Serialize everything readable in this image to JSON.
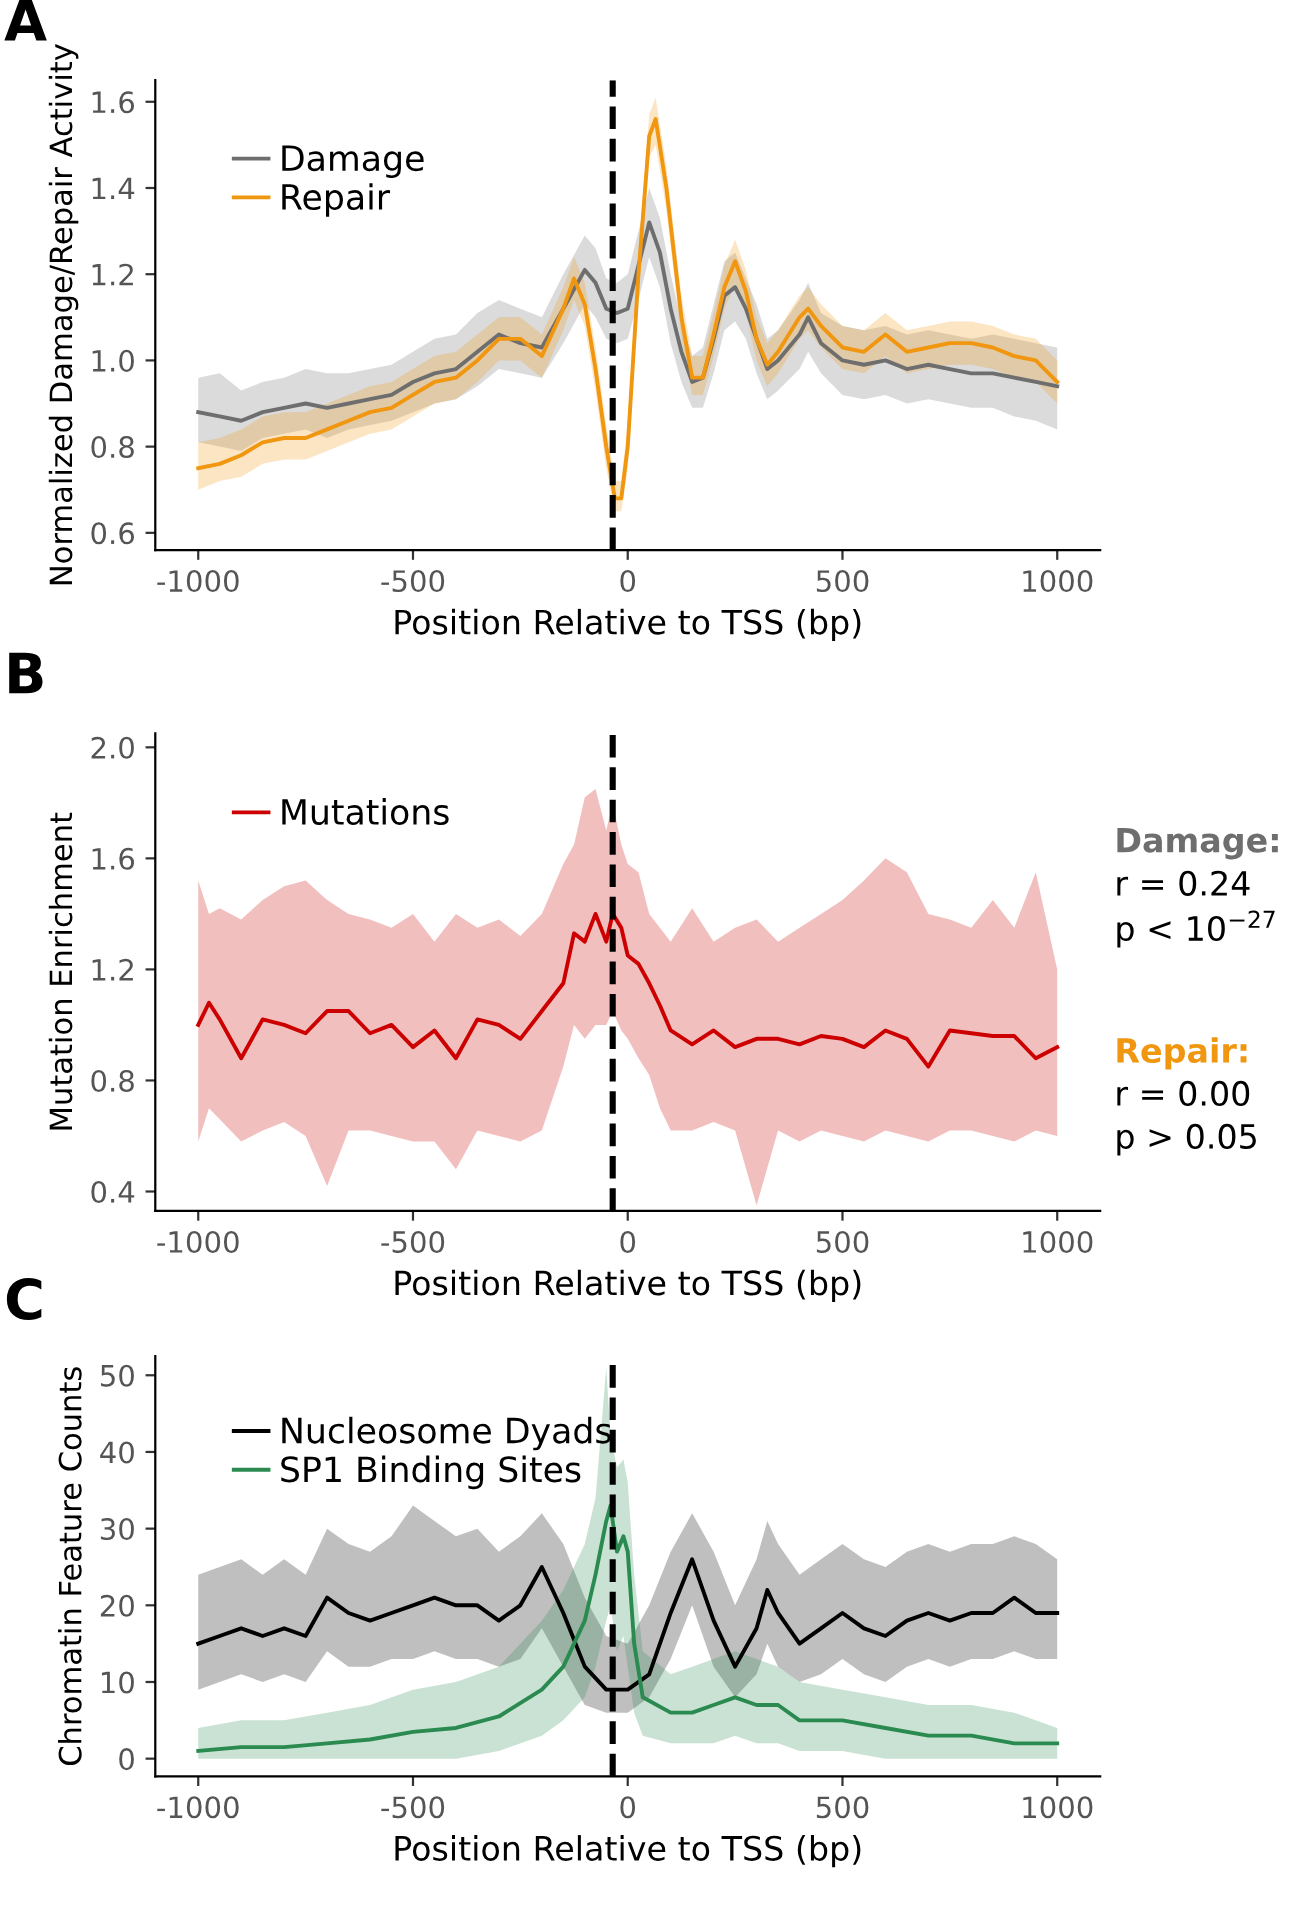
{
  "chart_data": [
    {
      "type": "line",
      "title": "A",
      "xlabel": "Position Relative to TSS (bp)",
      "ylabel": "Normalized Damage/Repair Activity",
      "xlim": [
        -1100,
        1100
      ],
      "xticks": [
        -1000,
        -500,
        0,
        500,
        1000
      ],
      "ylim": [
        0.56,
        1.65
      ],
      "yticks": [
        0.6,
        0.8,
        {
          "value": 1.0,
          "label": "1.0"
        },
        1.2,
        1.4,
        1.6
      ],
      "grid": false,
      "legend": "top left",
      "marker": "none",
      "line_style": "solid",
      "ref_lines": [
        {
          "axis": "x",
          "value": -35,
          "color": "#000000",
          "line_style": "dashed"
        }
      ],
      "series": [
        {
          "name": "Damage",
          "color": "#6e6e6e",
          "x": [
            -1000,
            -950,
            -900,
            -850,
            -800,
            -750,
            -700,
            -650,
            -600,
            -550,
            -500,
            -450,
            -400,
            -350,
            -300,
            -250,
            -200,
            -150,
            -100,
            -75,
            -50,
            -25,
            0,
            25,
            50,
            75,
            100,
            125,
            150,
            175,
            200,
            225,
            250,
            275,
            300,
            325,
            350,
            400,
            420,
            450,
            500,
            550,
            600,
            650,
            700,
            750,
            800,
            850,
            900,
            950,
            1000
          ],
          "values": [
            0.88,
            0.87,
            0.86,
            0.88,
            0.89,
            0.9,
            0.89,
            0.9,
            0.91,
            0.92,
            0.95,
            0.97,
            0.98,
            1.02,
            1.06,
            1.04,
            1.03,
            1.12,
            1.21,
            1.18,
            1.12,
            1.11,
            1.12,
            1.22,
            1.32,
            1.25,
            1.12,
            1.02,
            0.95,
            0.96,
            1.05,
            1.15,
            1.17,
            1.12,
            1.05,
            0.98,
            1.0,
            1.06,
            1.1,
            1.04,
            1.0,
            0.99,
            1.0,
            0.98,
            0.99,
            0.98,
            0.97,
            0.97,
            0.96,
            0.95,
            0.94
          ],
          "lower": [
            0.81,
            0.8,
            0.79,
            0.82,
            0.83,
            0.84,
            0.82,
            0.84,
            0.85,
            0.86,
            0.88,
            0.9,
            0.91,
            0.94,
            0.98,
            0.97,
            0.96,
            1.04,
            1.13,
            1.1,
            1.05,
            1.04,
            1.05,
            1.14,
            1.24,
            1.17,
            1.04,
            0.95,
            0.89,
            0.89,
            0.97,
            1.07,
            1.09,
            1.05,
            0.97,
            0.91,
            0.93,
            0.98,
            1.02,
            0.97,
            0.92,
            0.91,
            0.92,
            0.9,
            0.91,
            0.9,
            0.89,
            0.89,
            0.87,
            0.86,
            0.84
          ],
          "upper": [
            0.96,
            0.97,
            0.93,
            0.95,
            0.96,
            0.98,
            0.97,
            0.97,
            0.98,
            0.99,
            1.02,
            1.05,
            1.06,
            1.11,
            1.14,
            1.12,
            1.1,
            1.2,
            1.29,
            1.26,
            1.19,
            1.18,
            1.2,
            1.3,
            1.4,
            1.33,
            1.2,
            1.09,
            1.01,
            1.03,
            1.13,
            1.23,
            1.25,
            1.19,
            1.13,
            1.05,
            1.07,
            1.14,
            1.18,
            1.11,
            1.08,
            1.07,
            1.08,
            1.06,
            1.07,
            1.06,
            1.05,
            1.06,
            1.05,
            1.04,
            1.03
          ]
        },
        {
          "name": "Repair",
          "color": "#f0960f",
          "x": [
            -1000,
            -950,
            -900,
            -850,
            -800,
            -750,
            -700,
            -650,
            -600,
            -550,
            -500,
            -450,
            -400,
            -350,
            -300,
            -250,
            -200,
            -150,
            -125,
            -100,
            -75,
            -50,
            -30,
            -15,
            0,
            25,
            50,
            65,
            90,
            125,
            150,
            175,
            200,
            225,
            250,
            275,
            300,
            325,
            350,
            400,
            420,
            450,
            500,
            550,
            600,
            650,
            700,
            750,
            800,
            850,
            900,
            950,
            1000
          ],
          "values": [
            0.75,
            0.76,
            0.78,
            0.81,
            0.82,
            0.82,
            0.84,
            0.86,
            0.88,
            0.89,
            0.92,
            0.95,
            0.96,
            1.0,
            1.05,
            1.05,
            1.01,
            1.12,
            1.19,
            1.13,
            0.98,
            0.8,
            0.68,
            0.68,
            0.8,
            1.2,
            1.52,
            1.56,
            1.4,
            1.1,
            0.96,
            0.96,
            1.06,
            1.17,
            1.23,
            1.16,
            1.05,
            0.99,
            1.02,
            1.1,
            1.12,
            1.08,
            1.03,
            1.02,
            1.06,
            1.02,
            1.03,
            1.04,
            1.04,
            1.03,
            1.01,
            1.0,
            0.95
          ],
          "lower": [
            0.7,
            0.72,
            0.73,
            0.76,
            0.77,
            0.77,
            0.79,
            0.81,
            0.83,
            0.84,
            0.87,
            0.9,
            0.91,
            0.95,
            1.0,
            1.0,
            0.96,
            1.07,
            1.14,
            1.08,
            0.93,
            0.75,
            0.65,
            0.65,
            0.75,
            1.15,
            1.47,
            1.5,
            1.35,
            1.05,
            0.92,
            0.92,
            1.01,
            1.12,
            1.18,
            1.11,
            1.0,
            0.94,
            0.97,
            1.05,
            1.07,
            1.03,
            0.98,
            0.97,
            1.01,
            0.97,
            0.98,
            0.99,
            0.99,
            0.98,
            0.96,
            0.95,
            0.9
          ],
          "upper": [
            0.81,
            0.82,
            0.84,
            0.87,
            0.88,
            0.88,
            0.9,
            0.92,
            0.94,
            0.95,
            0.98,
            1.01,
            1.02,
            1.06,
            1.1,
            1.1,
            1.06,
            1.17,
            1.24,
            1.18,
            1.03,
            0.85,
            0.72,
            0.72,
            0.85,
            1.25,
            1.57,
            1.61,
            1.45,
            1.15,
            1.01,
            1.01,
            1.11,
            1.22,
            1.28,
            1.21,
            1.1,
            1.04,
            1.07,
            1.15,
            1.17,
            1.13,
            1.08,
            1.07,
            1.11,
            1.07,
            1.08,
            1.09,
            1.09,
            1.08,
            1.06,
            1.05,
            1.0
          ]
        }
      ]
    },
    {
      "type": "line",
      "title": "B",
      "xlabel": "Position Relative to TSS (bp)",
      "ylabel": "Mutation Enrichment",
      "xlim": [
        -1100,
        1100
      ],
      "xticks": [
        -1000,
        -500,
        0,
        500,
        1000
      ],
      "ylim": [
        0.33,
        2.05
      ],
      "yticks": [
        0.4,
        0.8,
        1.2,
        1.6,
        {
          "value": 2.0,
          "label": "2.0"
        }
      ],
      "grid": false,
      "legend": "top left",
      "marker": "none",
      "line_style": "solid",
      "ref_lines": [
        {
          "axis": "x",
          "value": -35,
          "color": "#000000",
          "line_style": "dashed"
        }
      ],
      "annotations": [
        "Damage:",
        "r = 0.24",
        "p < 10$^{−27}$",
        "Repair:",
        "r = 0.00",
        "p > 0.05"
      ],
      "series": [
        {
          "name": "Mutations",
          "color": "#cc0000",
          "x": [
            -1000,
            -975,
            -950,
            -900,
            -850,
            -800,
            -750,
            -700,
            -650,
            -600,
            -550,
            -500,
            -450,
            -400,
            -350,
            -300,
            -250,
            -200,
            -150,
            -125,
            -100,
            -75,
            -50,
            -35,
            -15,
            0,
            25,
            50,
            75,
            100,
            150,
            200,
            250,
            300,
            350,
            400,
            450,
            500,
            550,
            600,
            650,
            700,
            750,
            800,
            850,
            900,
            950,
            1000
          ],
          "values": [
            1.0,
            1.08,
            1.02,
            0.88,
            1.02,
            1.0,
            0.97,
            1.05,
            1.05,
            0.97,
            1.0,
            0.92,
            0.98,
            0.88,
            1.02,
            1.0,
            0.95,
            1.05,
            1.15,
            1.33,
            1.3,
            1.4,
            1.3,
            1.4,
            1.35,
            1.25,
            1.22,
            1.15,
            1.07,
            0.98,
            0.93,
            0.98,
            0.92,
            0.95,
            0.95,
            0.93,
            0.96,
            0.95,
            0.92,
            0.98,
            0.95,
            0.85,
            0.98,
            0.97,
            0.96,
            0.96,
            0.88,
            0.92
          ],
          "lower": [
            0.58,
            0.7,
            0.66,
            0.58,
            0.62,
            0.65,
            0.6,
            0.42,
            0.62,
            0.62,
            0.6,
            0.58,
            0.58,
            0.48,
            0.62,
            0.6,
            0.58,
            0.62,
            0.85,
            1.0,
            0.95,
            1.0,
            1.0,
            1.05,
            0.98,
            0.95,
            0.88,
            0.82,
            0.7,
            0.62,
            0.62,
            0.65,
            0.62,
            0.35,
            0.62,
            0.58,
            0.62,
            0.6,
            0.58,
            0.62,
            0.6,
            0.58,
            0.62,
            0.62,
            0.6,
            0.58,
            0.62,
            0.6
          ],
          "upper": [
            1.52,
            1.4,
            1.42,
            1.38,
            1.45,
            1.5,
            1.52,
            1.45,
            1.4,
            1.38,
            1.35,
            1.4,
            1.3,
            1.4,
            1.35,
            1.38,
            1.32,
            1.4,
            1.58,
            1.65,
            1.82,
            1.85,
            1.7,
            1.8,
            1.65,
            1.58,
            1.55,
            1.4,
            1.35,
            1.3,
            1.42,
            1.3,
            1.35,
            1.38,
            1.3,
            1.35,
            1.4,
            1.45,
            1.52,
            1.6,
            1.55,
            1.4,
            1.38,
            1.35,
            1.45,
            1.35,
            1.55,
            1.2
          ]
        }
      ]
    },
    {
      "type": "line",
      "title": "C",
      "xlabel": "Position Relative to TSS (bp)",
      "ylabel": "Chromatin Feature Counts",
      "xlim": [
        -1100,
        1100
      ],
      "xticks": [
        -1000,
        -500,
        0,
        500,
        1000
      ],
      "ylim": [
        -2.3,
        52.5
      ],
      "yticks": [
        0,
        10,
        20,
        30,
        40,
        50
      ],
      "grid": false,
      "legend": "top left",
      "marker": "none",
      "line_style": "solid",
      "ref_lines": [
        {
          "axis": "x",
          "value": -35,
          "color": "#000000",
          "line_style": "dashed"
        }
      ],
      "series": [
        {
          "name": "Nucleosome Dyads",
          "color": "#000000",
          "x": [
            -1000,
            -950,
            -900,
            -850,
            -800,
            -750,
            -700,
            -650,
            -600,
            -550,
            -500,
            -450,
            -400,
            -350,
            -300,
            -250,
            -200,
            -150,
            -100,
            -50,
            0,
            50,
            100,
            150,
            200,
            250,
            300,
            325,
            350,
            400,
            450,
            500,
            550,
            600,
            650,
            700,
            750,
            800,
            850,
            900,
            950,
            1000
          ],
          "values": [
            15,
            16,
            17,
            16,
            17,
            16,
            21,
            19,
            18,
            19,
            20,
            21,
            20,
            20,
            18,
            20,
            25,
            19,
            12,
            9,
            9,
            11,
            19,
            26,
            18,
            12,
            17,
            22,
            19,
            15,
            17,
            19,
            17,
            16,
            18,
            19,
            18,
            19,
            19,
            21,
            19,
            19
          ],
          "lower": [
            9,
            10,
            11,
            10,
            11,
            10,
            14,
            12,
            12,
            13,
            13,
            14,
            13,
            13,
            12,
            13,
            17,
            12,
            7,
            6,
            6,
            8,
            13,
            20,
            12,
            8,
            11,
            15,
            12,
            10,
            11,
            13,
            11,
            10,
            12,
            13,
            12,
            13,
            13,
            14,
            13,
            13
          ],
          "upper": [
            24,
            25,
            26,
            24,
            26,
            24,
            30,
            28,
            27,
            29,
            33,
            31,
            29,
            30,
            27,
            29,
            32,
            28,
            21,
            16,
            15,
            20,
            27,
            32,
            27,
            20,
            26,
            31,
            28,
            24,
            26,
            28,
            26,
            25,
            27,
            28,
            27,
            28,
            28,
            29,
            28,
            26
          ]
        },
        {
          "name": "SP1 Binding Sites",
          "color": "#2a8a50",
          "x": [
            -1000,
            -900,
            -800,
            -700,
            -600,
            -500,
            -400,
            -300,
            -200,
            -150,
            -100,
            -75,
            -50,
            -40,
            -25,
            -10,
            0,
            15,
            35,
            100,
            150,
            200,
            250,
            300,
            350,
            400,
            500,
            600,
            700,
            800,
            900,
            1000
          ],
          "values": [
            1,
            1.5,
            1.5,
            2,
            2.5,
            3.5,
            4,
            5.5,
            9,
            12,
            18,
            24,
            31,
            33,
            27,
            29,
            27,
            15,
            8,
            6,
            6,
            7,
            8,
            7,
            7,
            5,
            5,
            4,
            3,
            3,
            2,
            2
          ],
          "lower": [
            0,
            0,
            0,
            0,
            0,
            0,
            0,
            1,
            3,
            5,
            8,
            12,
            18,
            20,
            14,
            16,
            12,
            6,
            3,
            2,
            2,
            2,
            3,
            2,
            2,
            1,
            1,
            0,
            0,
            0,
            0,
            0
          ],
          "upper": [
            4,
            5,
            5,
            6,
            7,
            9,
            10,
            12,
            18,
            22,
            28,
            34,
            51,
            42,
            38,
            39,
            36,
            24,
            14,
            11,
            12,
            13,
            14,
            13,
            12,
            10,
            9,
            8,
            7,
            7,
            6,
            4
          ]
        }
      ]
    }
  ]
}
